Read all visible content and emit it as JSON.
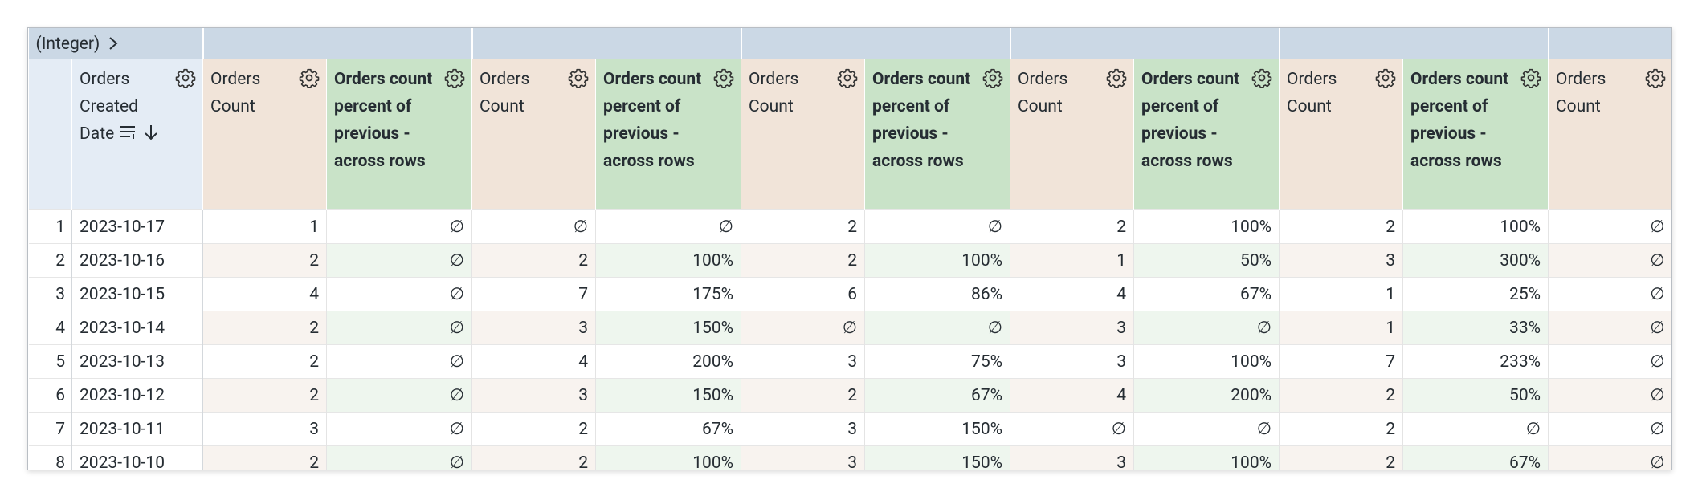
{
  "header": {
    "pivot_label": "(Integer)"
  },
  "columns": [
    "Orders Created Date",
    "Orders Count",
    "Orders count percent of previous - across rows",
    "Orders Count",
    "Orders count percent of previous - across rows",
    "Orders Count",
    "Orders count percent of previous - across rows",
    "Orders Count",
    "Orders count percent of previous - across rows",
    "Orders Count",
    "Orders count percent of previous - across rows",
    "Orders Count"
  ],
  "rows": [
    {
      "index": "1",
      "cells": [
        "2023-10-17",
        "1",
        "∅",
        "∅",
        "∅",
        "2",
        "∅",
        "2",
        "100%",
        "2",
        "100%",
        "∅"
      ]
    },
    {
      "index": "2",
      "cells": [
        "2023-10-16",
        "2",
        "∅",
        "2",
        "100%",
        "2",
        "100%",
        "1",
        "50%",
        "3",
        "300%",
        "∅"
      ]
    },
    {
      "index": "3",
      "cells": [
        "2023-10-15",
        "4",
        "∅",
        "7",
        "175%",
        "6",
        "86%",
        "4",
        "67%",
        "1",
        "25%",
        "∅"
      ]
    },
    {
      "index": "4",
      "cells": [
        "2023-10-14",
        "2",
        "∅",
        "3",
        "150%",
        "∅",
        "∅",
        "3",
        "∅",
        "1",
        "33%",
        "∅"
      ]
    },
    {
      "index": "5",
      "cells": [
        "2023-10-13",
        "2",
        "∅",
        "4",
        "200%",
        "3",
        "75%",
        "3",
        "100%",
        "7",
        "233%",
        "∅"
      ]
    },
    {
      "index": "6",
      "cells": [
        "2023-10-12",
        "2",
        "∅",
        "3",
        "150%",
        "2",
        "67%",
        "4",
        "200%",
        "2",
        "50%",
        "∅"
      ]
    },
    {
      "index": "7",
      "cells": [
        "2023-10-11",
        "3",
        "∅",
        "2",
        "67%",
        "3",
        "150%",
        "∅",
        "∅",
        "2",
        "∅",
        "∅"
      ]
    },
    {
      "index": "8",
      "cells": [
        "2023-10-10",
        "2",
        "∅",
        "2",
        "100%",
        "3",
        "150%",
        "3",
        "100%",
        "2",
        "67%",
        "∅"
      ]
    }
  ]
}
